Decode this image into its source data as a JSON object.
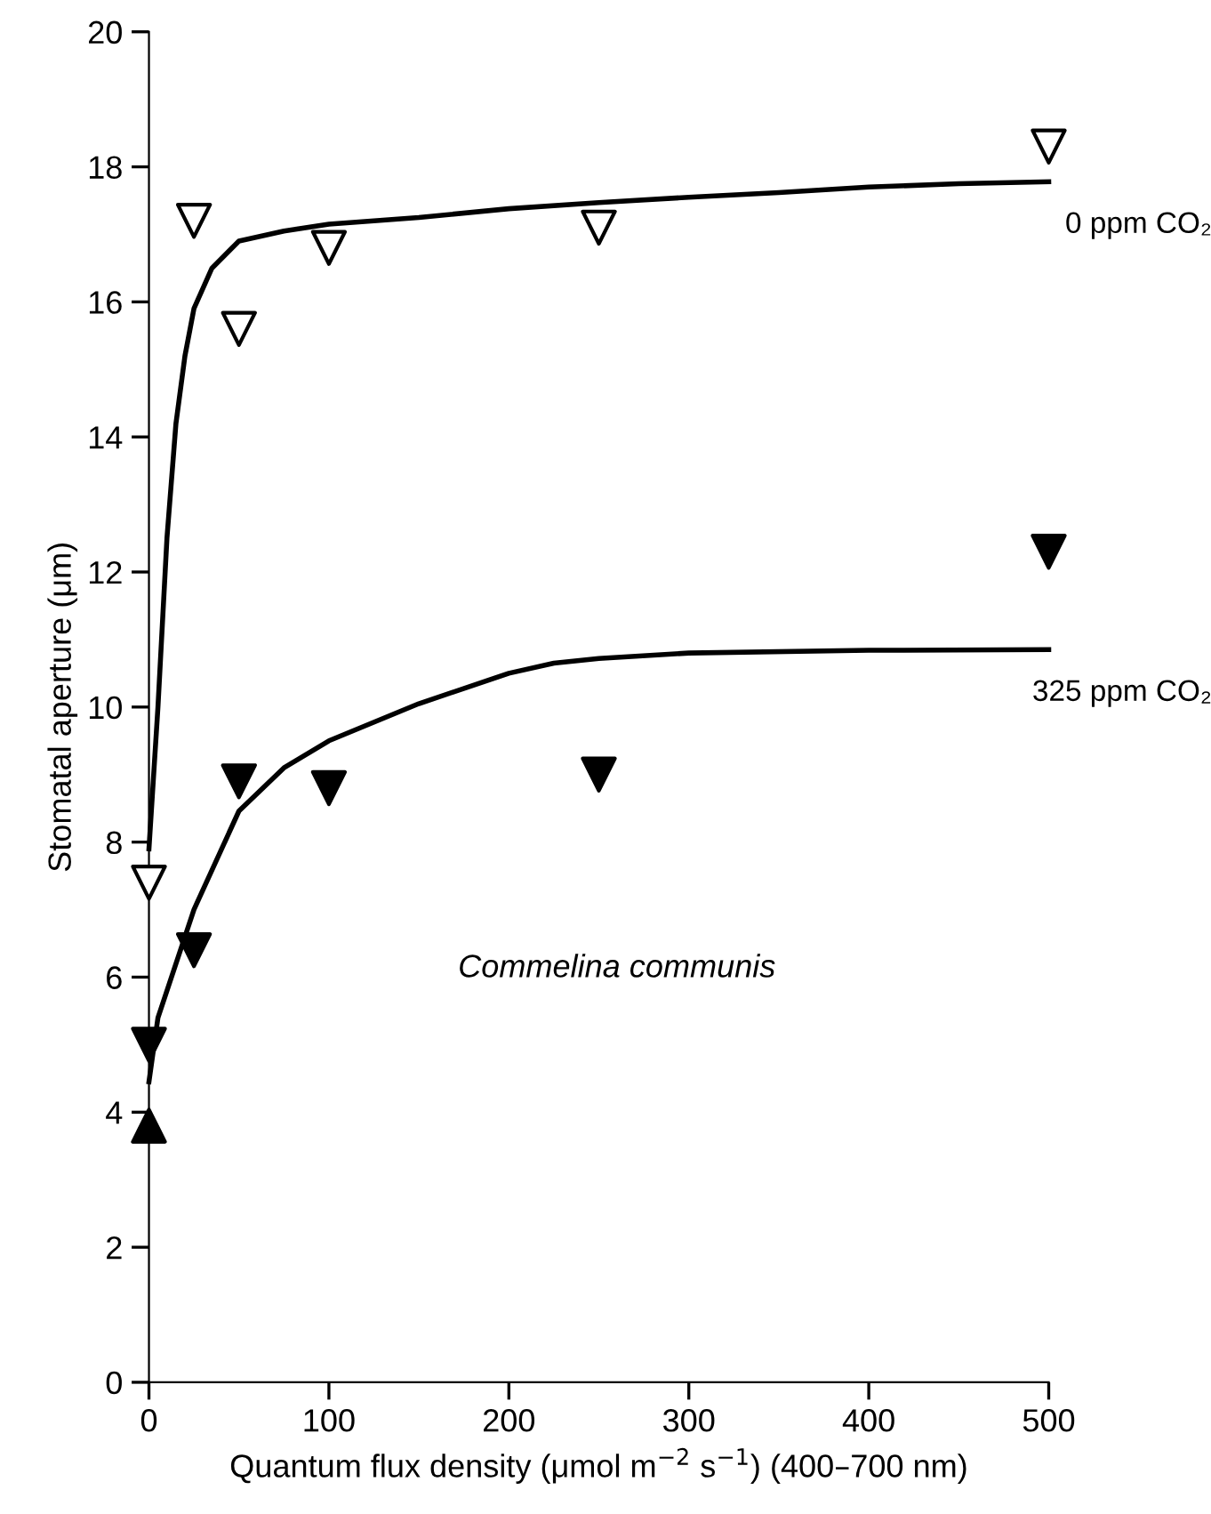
{
  "chart_data": {
    "type": "scatter",
    "xlabel": "Quantum flux density (μmol m$^{−2}$ s$^{−1}$) (400–700 nm)",
    "ylabel": "Stomatal aperture (μm)",
    "xlim": [
      0,
      500
    ],
    "xticks": [
      0,
      100,
      200,
      300,
      400,
      500
    ],
    "ylim": [
      0,
      20
    ],
    "yticks": [
      0,
      2,
      4,
      6,
      8,
      10,
      12,
      14,
      16,
      18,
      20
    ],
    "grid": false,
    "legend": false,
    "series": [
      {
        "type": "line",
        "name": "0 ppm CO₂",
        "color": "#000000",
        "marker": "none",
        "line_style": "solid",
        "x": [
          0,
          5,
          10,
          15,
          20,
          25,
          35,
          50,
          75,
          100,
          150,
          200,
          250,
          300,
          350,
          400,
          450,
          500
        ],
        "values": [
          7.9,
          10,
          12.5,
          14.2,
          15.2,
          15.9,
          16.5,
          16.9,
          17.05,
          17.15,
          17.25,
          17.38,
          17.47,
          17.55,
          17.62,
          17.7,
          17.75,
          17.78
        ]
      },
      {
        "type": "line",
        "name": "325 ppm CO₂",
        "color": "#000000",
        "marker": "none",
        "line_style": "solid",
        "x": [
          0,
          5,
          25,
          50,
          75,
          100,
          150,
          200,
          225,
          250,
          300,
          400,
          500
        ],
        "values": [
          4.45,
          5.4,
          7.0,
          8.46,
          9.1,
          9.5,
          10.05,
          10.5,
          10.65,
          10.72,
          10.8,
          10.84,
          10.85
        ]
      },
      {
        "color": "#ffffff",
        "marker": "triangle_down",
        "x": [
          0,
          25,
          50,
          100,
          250,
          500
        ],
        "values": [
          7.4,
          17.2,
          15.6,
          16.8,
          17.1,
          18.3
        ]
      },
      {
        "color": "#000000",
        "marker": "triangle_down",
        "x": [
          0,
          25,
          50,
          100,
          250,
          500
        ],
        "values": [
          5.0,
          6.4,
          8.9,
          8.8,
          9.0,
          12.3
        ]
      },
      {
        "color": "#000000",
        "marker": "triangle",
        "x": [
          0
        ],
        "values": [
          3.8
        ]
      }
    ],
    "annotations": [
      "Commelina communis"
    ]
  }
}
